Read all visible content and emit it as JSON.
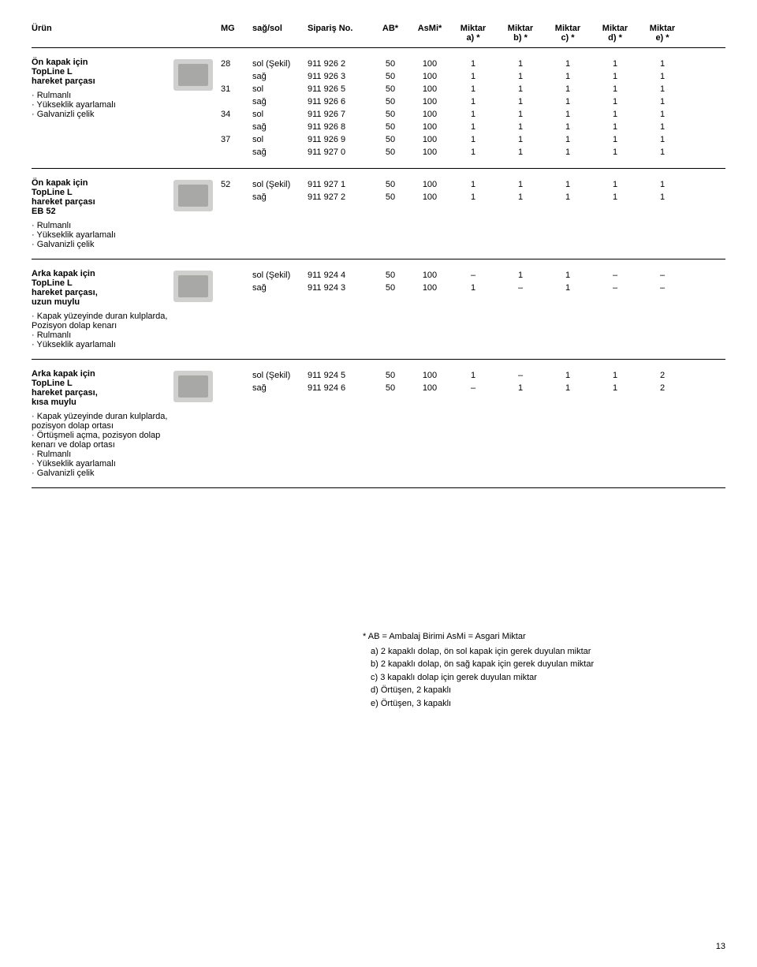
{
  "header": {
    "urun": "Ürün",
    "mg": "MG",
    "sagsol": "sağ/sol",
    "siparis": "Sipariş No.",
    "ab": "AB*",
    "asmi": "AsMi*",
    "miktar_a": "Miktar",
    "miktar_a_sub": "a) *",
    "miktar_b": "Miktar",
    "miktar_b_sub": "b) *",
    "miktar_c": "Miktar",
    "miktar_c_sub": "c) *",
    "miktar_d": "Miktar",
    "miktar_d_sub": "d) *",
    "miktar_e": "Miktar",
    "miktar_e_sub": "e) *"
  },
  "sections": [
    {
      "title_lines": [
        "Ön kapak için",
        "TopLine L",
        "hareket parçası"
      ],
      "bullets": [
        "Rulmanlı",
        "Yükseklik ayarlamalı",
        "Galvanizli çelik"
      ],
      "rows": [
        {
          "mg": "28",
          "ss": "sol (Şekil)",
          "sip": "911 926 2",
          "ab": "50",
          "asmi": "100",
          "a": "1",
          "b": "1",
          "c": "1",
          "d": "1",
          "e": "1"
        },
        {
          "mg": "",
          "ss": "sağ",
          "sip": "911 926 3",
          "ab": "50",
          "asmi": "100",
          "a": "1",
          "b": "1",
          "c": "1",
          "d": "1",
          "e": "1"
        },
        {
          "mg": "31",
          "ss": "sol",
          "sip": "911 926 5",
          "ab": "50",
          "asmi": "100",
          "a": "1",
          "b": "1",
          "c": "1",
          "d": "1",
          "e": "1"
        },
        {
          "mg": "",
          "ss": "sağ",
          "sip": "911 926 6",
          "ab": "50",
          "asmi": "100",
          "a": "1",
          "b": "1",
          "c": "1",
          "d": "1",
          "e": "1"
        },
        {
          "mg": "34",
          "ss": "sol",
          "sip": "911 926 7",
          "ab": "50",
          "asmi": "100",
          "a": "1",
          "b": "1",
          "c": "1",
          "d": "1",
          "e": "1"
        },
        {
          "mg": "",
          "ss": "sağ",
          "sip": "911 926 8",
          "ab": "50",
          "asmi": "100",
          "a": "1",
          "b": "1",
          "c": "1",
          "d": "1",
          "e": "1"
        },
        {
          "mg": "37",
          "ss": "sol",
          "sip": "911 926 9",
          "ab": "50",
          "asmi": "100",
          "a": "1",
          "b": "1",
          "c": "1",
          "d": "1",
          "e": "1"
        },
        {
          "mg": "",
          "ss": "sağ",
          "sip": "911 927 0",
          "ab": "50",
          "asmi": "100",
          "a": "1",
          "b": "1",
          "c": "1",
          "d": "1",
          "e": "1"
        }
      ]
    },
    {
      "title_lines": [
        "Ön kapak için",
        "TopLine L",
        "hareket parçası",
        "EB 52"
      ],
      "bullets": [
        "Rulmanlı",
        "Yükseklik ayarlamalı",
        "Galvanizli çelik"
      ],
      "rows": [
        {
          "mg": "52",
          "ss": "sol (Şekil)",
          "sip": "911 927 1",
          "ab": "50",
          "asmi": "100",
          "a": "1",
          "b": "1",
          "c": "1",
          "d": "1",
          "e": "1"
        },
        {
          "mg": "",
          "ss": "sağ",
          "sip": "911 927 2",
          "ab": "50",
          "asmi": "100",
          "a": "1",
          "b": "1",
          "c": "1",
          "d": "1",
          "e": "1"
        }
      ]
    },
    {
      "title_lines": [
        "Arka kapak için",
        "TopLine L",
        "hareket parçası,",
        "uzun muylu"
      ],
      "bullets": [
        "Kapak yüzeyinde duran kulplarda, Pozisyon dolap kenarı",
        "Rulmanlı",
        "Yükseklik ayarlamalı"
      ],
      "rows": [
        {
          "mg": "",
          "ss": "sol (Şekil)",
          "sip": "911 924 4",
          "ab": "50",
          "asmi": "100",
          "a": "–",
          "b": "1",
          "c": "1",
          "d": "–",
          "e": "–"
        },
        {
          "mg": "",
          "ss": "sağ",
          "sip": "911 924 3",
          "ab": "50",
          "asmi": "100",
          "a": "1",
          "b": "–",
          "c": "1",
          "d": "–",
          "e": "–"
        }
      ]
    },
    {
      "title_lines": [
        "Arka kapak için",
        "TopLine L",
        "hareket parçası,",
        "kısa muylu"
      ],
      "bullets": [
        "Kapak yüzeyinde duran kulplarda, pozisyon dolap ortası",
        "Örtüşmeli açma, pozisyon dolap kenarı ve dolap ortası",
        "Rulmanlı",
        "Yükseklik ayarlamalı",
        "Galvanizli çelik"
      ],
      "rows": [
        {
          "mg": "",
          "ss": "sol (Şekil)",
          "sip": "911 924 5",
          "ab": "50",
          "asmi": "100",
          "a": "1",
          "b": "–",
          "c": "1",
          "d": "1",
          "e": "2"
        },
        {
          "mg": "",
          "ss": "sağ",
          "sip": "911 924 6",
          "ab": "50",
          "asmi": "100",
          "a": "–",
          "b": "1",
          "c": "1",
          "d": "1",
          "e": "2"
        }
      ]
    }
  ],
  "footnotes": {
    "first": "* AB = Ambalaj Birimi    AsMi = Asgari Miktar",
    "lines": [
      "a) 2 kapaklı dolap, ön sol kapak için gerek duyulan miktar",
      "b) 2 kapaklı dolap, ön sağ kapak için gerek duyulan miktar",
      "c) 3 kapaklı dolap için gerek duyulan miktar",
      "d) Örtüşen, 2 kapaklı",
      "e) Örtüşen, 3 kapaklı"
    ]
  },
  "page_number": "13"
}
